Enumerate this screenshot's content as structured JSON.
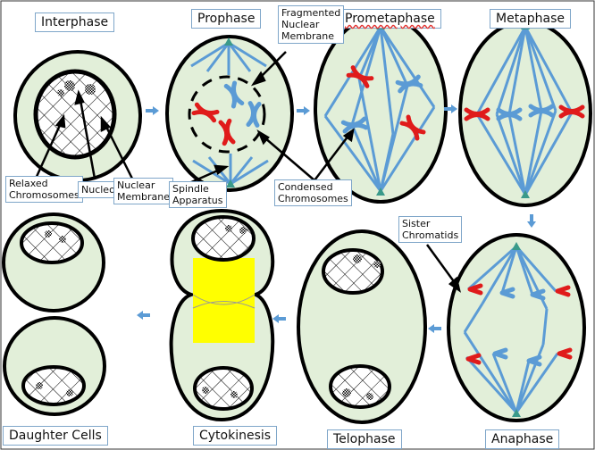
{
  "phases": {
    "interphase": "Interphase",
    "prophase": "Prophase",
    "prometaphase": "Prometaphase",
    "metaphase": "Metaphase",
    "anaphase": "Anaphase",
    "telophase": "Telophase",
    "cytokinesis": "Cytokinesis",
    "daughter_cells": "Daughter Cells"
  },
  "annotations": {
    "fragmented_membrane": [
      "Fragmented",
      "Nuclear",
      "Membrane"
    ],
    "relaxed_chromosomes": [
      "Relaxed",
      "Chromosomes"
    ],
    "nucleoli": "Nucleoli",
    "nuclear_membrane": [
      "Nuclear",
      "Membrane"
    ],
    "spindle_apparatus": [
      "Spindle",
      "Apparatus"
    ],
    "condensed_chromosomes": [
      "Condensed",
      "Chromosomes"
    ],
    "sister_chromatids": [
      "Sister",
      "Chromatids"
    ]
  },
  "colors": {
    "cell_fill": "#e2efd9",
    "spindle": "#5b9bd5",
    "chromosome_red": "#e01b1b",
    "chromosome_blue": "#5b9bd5",
    "cleavage": "#ffff00",
    "arrow": "#5b9bd5",
    "centrosome": "#3a9a8a"
  }
}
